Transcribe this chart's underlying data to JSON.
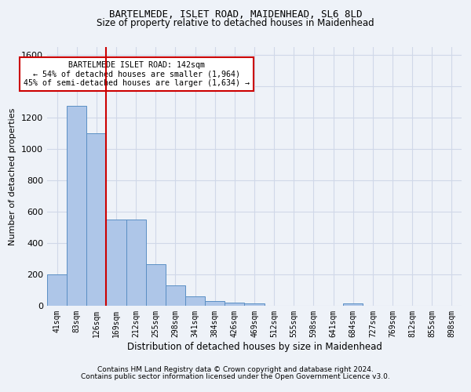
{
  "title": "BARTELMEDE, ISLET ROAD, MAIDENHEAD, SL6 8LD",
  "subtitle": "Size of property relative to detached houses in Maidenhead",
  "xlabel": "Distribution of detached houses by size in Maidenhead",
  "ylabel": "Number of detached properties",
  "footer_line1": "Contains HM Land Registry data © Crown copyright and database right 2024.",
  "footer_line2": "Contains public sector information licensed under the Open Government Licence v3.0.",
  "categories": [
    "41sqm",
    "83sqm",
    "126sqm",
    "169sqm",
    "212sqm",
    "255sqm",
    "298sqm",
    "341sqm",
    "384sqm",
    "426sqm",
    "469sqm",
    "512sqm",
    "555sqm",
    "598sqm",
    "641sqm",
    "684sqm",
    "727sqm",
    "769sqm",
    "812sqm",
    "855sqm",
    "898sqm"
  ],
  "values": [
    200,
    1275,
    1100,
    550,
    550,
    265,
    130,
    60,
    30,
    20,
    15,
    0,
    0,
    0,
    0,
    15,
    0,
    0,
    0,
    0,
    0
  ],
  "bar_color": "#aec6e8",
  "bar_edge_color": "#5a8fc4",
  "red_line_index": 2.5,
  "red_line_color": "#cc0000",
  "annotation_text": "BARTELMEDE ISLET ROAD: 142sqm\n← 54% of detached houses are smaller (1,964)\n45% of semi-detached houses are larger (1,634) →",
  "annotation_box_color": "#ffffff",
  "annotation_box_edge_color": "#cc0000",
  "ylim": [
    0,
    1650
  ],
  "yticks": [
    0,
    200,
    400,
    600,
    800,
    1000,
    1200,
    1400,
    1600
  ],
  "grid_color": "#d0d8e8",
  "background_color": "#eef2f8",
  "title_fontsize": 9,
  "subtitle_fontsize": 8.5
}
